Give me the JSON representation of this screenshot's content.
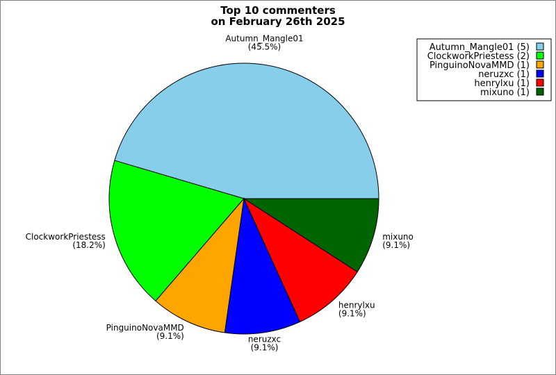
{
  "chart_data": {
    "type": "pie",
    "title": [
      "Top 10 commenters",
      "on February 26th 2025"
    ],
    "legend_position": "top-right",
    "slices": [
      {
        "label": "Autumn_Mangle01",
        "value": 5,
        "percent": "45.5%",
        "color": "#87ceeb",
        "legend": "Autumn_Mangle01 (5)"
      },
      {
        "label": "ClockworkPriestess",
        "value": 2,
        "percent": "18.2%",
        "color": "#00ff00",
        "legend": "ClockworkPriestess (2)"
      },
      {
        "label": "PinguinoNovaMMD",
        "value": 1,
        "percent": "9.1%",
        "color": "#ffa500",
        "legend": "PinguinoNovaMMD (1)"
      },
      {
        "label": "neruzxc",
        "value": 1,
        "percent": "9.1%",
        "color": "#0000ff",
        "legend": "neruzxc (1)"
      },
      {
        "label": "henrylxu",
        "value": 1,
        "percent": "9.1%",
        "color": "#ff0000",
        "legend": "henrylxu (1)"
      },
      {
        "label": "mixuno",
        "value": 1,
        "percent": "9.1%",
        "color": "#006400",
        "legend": "mixuno (1)"
      }
    ]
  }
}
